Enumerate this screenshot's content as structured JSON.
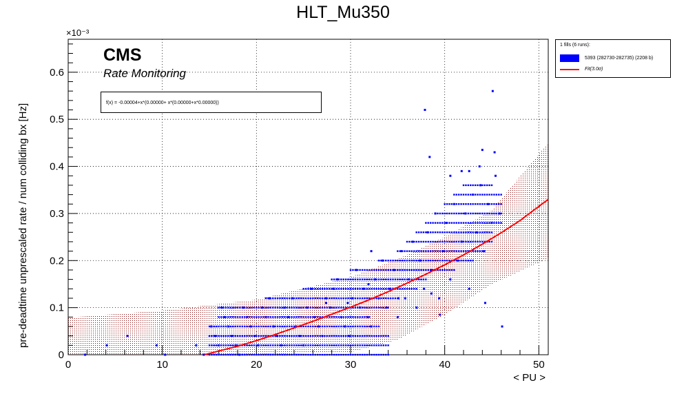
{
  "title": "HLT_Mu350",
  "labels": {
    "cms": "CMS",
    "subtitle": "Rate Monitoring",
    "fit_formula": "f(x) = -0.00004+x*(0.00000+ x*(0.00000+x*0.00000))",
    "exponent": "×10⁻³"
  },
  "legend": {
    "header": "1 fills (6 runs):",
    "entries": [
      {
        "label": "5393 (282730-282735) (2208 b)",
        "color": "#0000ff",
        "kind": "fill"
      },
      {
        "label": "Fit(3.0σ)",
        "color": "#ff0000",
        "kind": "line"
      }
    ]
  },
  "chart_data": {
    "type": "scatter",
    "title": "HLT_Mu350",
    "xlabel": "< PU >",
    "ylabel": "pre-deadtime unprescaled rate / num colliding bx [Hz]",
    "y_multiplier": "1e-3",
    "xlim": [
      0,
      51
    ],
    "ylim": [
      0,
      0.67
    ],
    "xticks": [
      0,
      10,
      20,
      30,
      40,
      50
    ],
    "yticks": [
      0,
      0.1,
      0.2,
      0.3,
      0.4,
      0.5,
      0.6
    ],
    "grid": true,
    "legend_position": "outside top-right",
    "colors": {
      "points": "#0000ff",
      "fit": "#ff0000",
      "band": "#8b0000"
    },
    "fit": {
      "name": "Fit(3.0σ)",
      "x": [
        14.5,
        16,
        18,
        20,
        22,
        24,
        26,
        28,
        30,
        32,
        34,
        36,
        38,
        40,
        42,
        44,
        46,
        48,
        51
      ],
      "y": [
        0.0,
        0.008,
        0.018,
        0.03,
        0.043,
        0.057,
        0.071,
        0.086,
        0.101,
        0.117,
        0.134,
        0.152,
        0.171,
        0.191,
        0.212,
        0.235,
        0.259,
        0.285,
        0.33
      ]
    },
    "band": {
      "x": [
        0,
        10,
        20,
        30,
        35,
        40,
        45,
        51
      ],
      "upper": [
        0.079,
        0.094,
        0.117,
        0.165,
        0.203,
        0.25,
        0.307,
        0.45
      ],
      "lower": [
        0,
        0,
        0,
        0.005,
        0.032,
        0.085,
        0.15,
        0.205
      ]
    },
    "series": [
      {
        "name": "5393 (282730-282735) (2208 b)",
        "points": [
          [
            1.8,
            0.0
          ],
          [
            4.1,
            0.02
          ],
          [
            6.3,
            0.04
          ],
          [
            9.4,
            0.02
          ],
          [
            10.3,
            0.0
          ],
          [
            13.6,
            0.02
          ],
          [
            14.4,
            0.0
          ],
          [
            15.2,
            0.06
          ],
          [
            15.6,
            0.04
          ],
          [
            16.0,
            0.02
          ],
          [
            16.3,
            0.1
          ],
          [
            16.6,
            0.08
          ],
          [
            17.0,
            0.06
          ],
          [
            17.4,
            0.04
          ],
          [
            17.8,
            0.02
          ],
          [
            18.2,
            0.0
          ],
          [
            18.6,
            0.1
          ],
          [
            19.0,
            0.08
          ],
          [
            19.4,
            0.06
          ],
          [
            19.8,
            0.04
          ],
          [
            20.2,
            0.02
          ],
          [
            20.6,
            0.1
          ],
          [
            21.0,
            0.08
          ],
          [
            21.4,
            0.12
          ],
          [
            21.8,
            0.06
          ],
          [
            22.2,
            0.04
          ],
          [
            22.6,
            0.02
          ],
          [
            23.0,
            0.1
          ],
          [
            23.4,
            0.08
          ],
          [
            23.8,
            0.12
          ],
          [
            24.2,
            0.06
          ],
          [
            24.6,
            0.04
          ],
          [
            25.0,
            0.02
          ],
          [
            25.4,
            0.1
          ],
          [
            25.8,
            0.14
          ],
          [
            26.2,
            0.08
          ],
          [
            26.6,
            0.06
          ],
          [
            27.0,
            0.04
          ],
          [
            27.4,
            0.12
          ],
          [
            27.8,
            0.1
          ],
          [
            28.2,
            0.14
          ],
          [
            28.6,
            0.16
          ],
          [
            29.0,
            0.08
          ],
          [
            29.4,
            0.06
          ],
          [
            29.8,
            0.04
          ],
          [
            30.2,
            0.12
          ],
          [
            30.6,
            0.18
          ],
          [
            31.0,
            0.1
          ],
          [
            31.4,
            0.14
          ],
          [
            31.8,
            0.08
          ],
          [
            32.2,
            0.06
          ],
          [
            32.6,
            0.16
          ],
          [
            33.0,
            0.12
          ],
          [
            33.4,
            0.2
          ],
          [
            33.8,
            0.1
          ],
          [
            34.2,
            0.14
          ],
          [
            34.6,
            0.18
          ],
          [
            35.0,
            0.08
          ],
          [
            35.4,
            0.22
          ],
          [
            35.8,
            0.12
          ],
          [
            36.2,
            0.16
          ],
          [
            36.6,
            0.24
          ],
          [
            37.0,
            0.1
          ],
          [
            37.4,
            0.2
          ],
          [
            37.8,
            0.14
          ],
          [
            38.2,
            0.26
          ],
          [
            38.6,
            0.18
          ],
          [
            39.0,
            0.3
          ],
          [
            39.4,
            0.12
          ],
          [
            39.8,
            0.22
          ],
          [
            40.2,
            0.28
          ],
          [
            40.6,
            0.16
          ],
          [
            41.0,
            0.32
          ],
          [
            41.4,
            0.2
          ],
          [
            41.8,
            0.24
          ],
          [
            42.2,
            0.3
          ],
          [
            42.6,
            0.14
          ],
          [
            43.0,
            0.34
          ],
          [
            43.4,
            0.26
          ],
          [
            43.8,
            0.36
          ],
          [
            44.2,
            0.22
          ],
          [
            44.6,
            0.32
          ],
          [
            45.0,
            0.28
          ],
          [
            45.4,
            0.38
          ],
          [
            45.8,
            0.3
          ],
          [
            37.9,
            0.52
          ],
          [
            45.1,
            0.56
          ],
          [
            38.4,
            0.42
          ],
          [
            44.0,
            0.435
          ],
          [
            45.3,
            0.43
          ],
          [
            41.8,
            0.39
          ],
          [
            42.6,
            0.39
          ],
          [
            43.7,
            0.4
          ],
          [
            40.6,
            0.38
          ],
          [
            46.1,
            0.06
          ],
          [
            38.6,
            0.13
          ],
          [
            35.1,
            0.12
          ],
          [
            27.4,
            0.11
          ],
          [
            29.7,
            0.11
          ],
          [
            32.2,
            0.22
          ],
          [
            31.9,
            0.15
          ],
          [
            44.3,
            0.11
          ],
          [
            39.5,
            0.085
          ]
        ]
      }
    ]
  }
}
